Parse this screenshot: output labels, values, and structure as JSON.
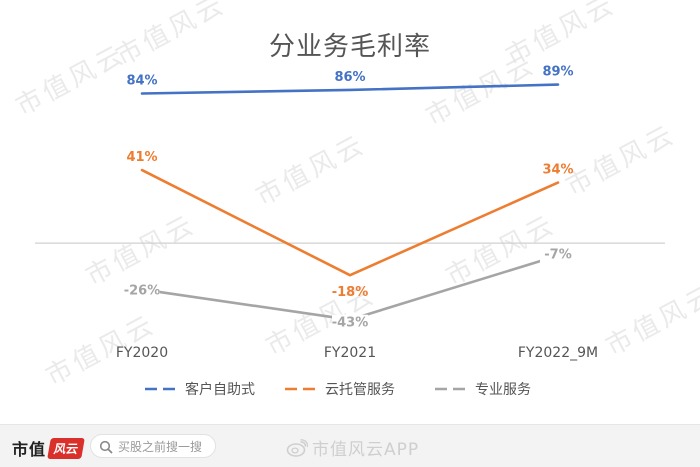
{
  "chart_data": {
    "type": "line",
    "title": "分业务毛利率",
    "categories": [
      "FY2020",
      "FY2021",
      "FY2022_9M"
    ],
    "series": [
      {
        "name": "客户自助式",
        "color": "#4472C4",
        "values": [
          84,
          86,
          89
        ],
        "labels": [
          "84%",
          "86%",
          "89%"
        ],
        "label_position": "above"
      },
      {
        "name": "云托管服务",
        "color": "#ED7D31",
        "values": [
          41,
          -18,
          34
        ],
        "labels": [
          "41%",
          "-18%",
          "34%"
        ],
        "label_position": "above"
      },
      {
        "name": "专业服务",
        "color": "#A5A5A5",
        "values": [
          -26,
          -43,
          -7
        ],
        "labels": [
          "-26%",
          "-43%",
          "-7%"
        ],
        "label_position": "left"
      }
    ],
    "ylim": [
      -60,
      100
    ],
    "zero_line": true,
    "grid": false,
    "legend": "bottom",
    "value_unit": "%"
  },
  "watermark": {
    "text": "市值风云"
  },
  "footer": {
    "brand_name": "市值",
    "brand_mark": "风云",
    "search_placeholder": "买股之前搜一搜",
    "search_icon": "search-icon",
    "weibo_text": "市值风云APP",
    "weibo_icon": "weibo-icon"
  }
}
